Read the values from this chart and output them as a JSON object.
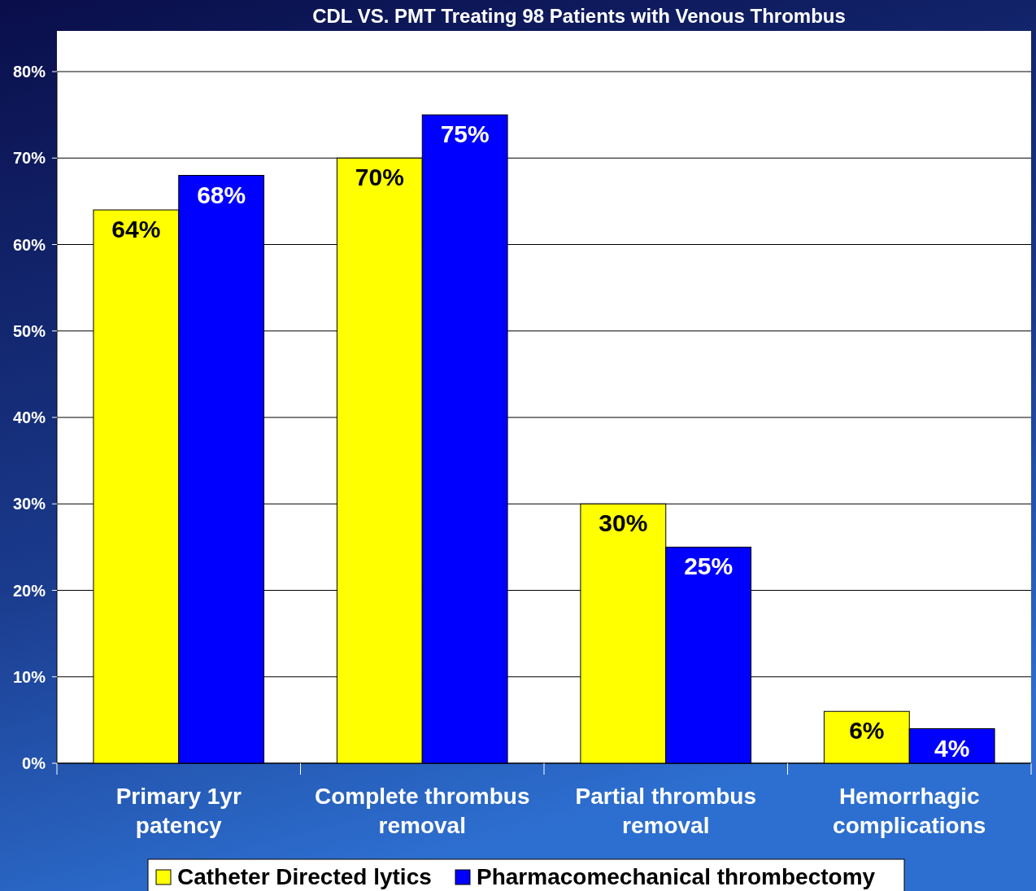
{
  "chart_data": {
    "type": "bar",
    "title": "CDL VS. PMT Treating 98 Patients with Venous Thrombus",
    "categories": [
      "Primary 1yr patency",
      "Complete thrombus removal",
      "Partial thrombus removal",
      "Hemorrhagic complications"
    ],
    "series": [
      {
        "name": "Catheter Directed lytics",
        "color": "#ffff00",
        "values": [
          64,
          70,
          30,
          6
        ],
        "value_labels": [
          "64%",
          "70%",
          "30%",
          "6%"
        ]
      },
      {
        "name": "Pharmacomechanical thrombectomy",
        "color": "#0000ff",
        "values": [
          68,
          75,
          25,
          4
        ],
        "value_labels": [
          "68%",
          "75%",
          "25%",
          "4%"
        ]
      }
    ],
    "ylim": [
      0,
      80
    ],
    "yticks": [
      {
        "value": 0,
        "label": "0%"
      },
      {
        "value": 10,
        "label": "10%"
      },
      {
        "value": 20,
        "label": "20%"
      },
      {
        "value": 30,
        "label": "30%"
      },
      {
        "value": 40,
        "label": "40%"
      },
      {
        "value": 50,
        "label": "50%"
      },
      {
        "value": 60,
        "label": "60%"
      },
      {
        "value": 70,
        "label": "70%"
      },
      {
        "value": 80,
        "label": "80%"
      }
    ],
    "grid": "y",
    "legend": "bottom"
  }
}
